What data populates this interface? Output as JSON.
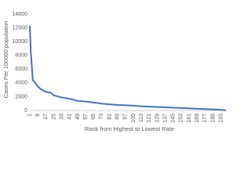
{
  "chart_data": {
    "type": "line",
    "x_label": "Rank from Highest to Lowest Rate",
    "y_label": "Cases Per 100000 population",
    "x": [
      1,
      2,
      3,
      4,
      6,
      9,
      12,
      17,
      22,
      25,
      33,
      41,
      49,
      57,
      65,
      73,
      81,
      89,
      97,
      105,
      113,
      121,
      129,
      137,
      145,
      153,
      161,
      169,
      177,
      185,
      193,
      198
    ],
    "series": [
      {
        "color": "#4472c4",
        "values": [
          12300,
          8500,
          6500,
          4400,
          4100,
          3500,
          3100,
          2700,
          2600,
          2200,
          1900,
          1700,
          1400,
          1300,
          1150,
          1000,
          900,
          800,
          750,
          700,
          600,
          550,
          500,
          450,
          400,
          350,
          300,
          250,
          200,
          150,
          100,
          20
        ]
      }
    ],
    "xlim": [
      1,
      198
    ],
    "xticks": [
      1,
      9,
      17,
      25,
      33,
      41,
      49,
      57,
      65,
      73,
      81,
      89,
      97,
      105,
      113,
      121,
      129,
      137,
      145,
      153,
      161,
      169,
      177,
      185,
      193
    ],
    "ylim": [
      0,
      14000
    ],
    "yticks": [
      0,
      2000,
      4000,
      6000,
      8000,
      10000,
      12000,
      14000
    ],
    "grid": false
  }
}
